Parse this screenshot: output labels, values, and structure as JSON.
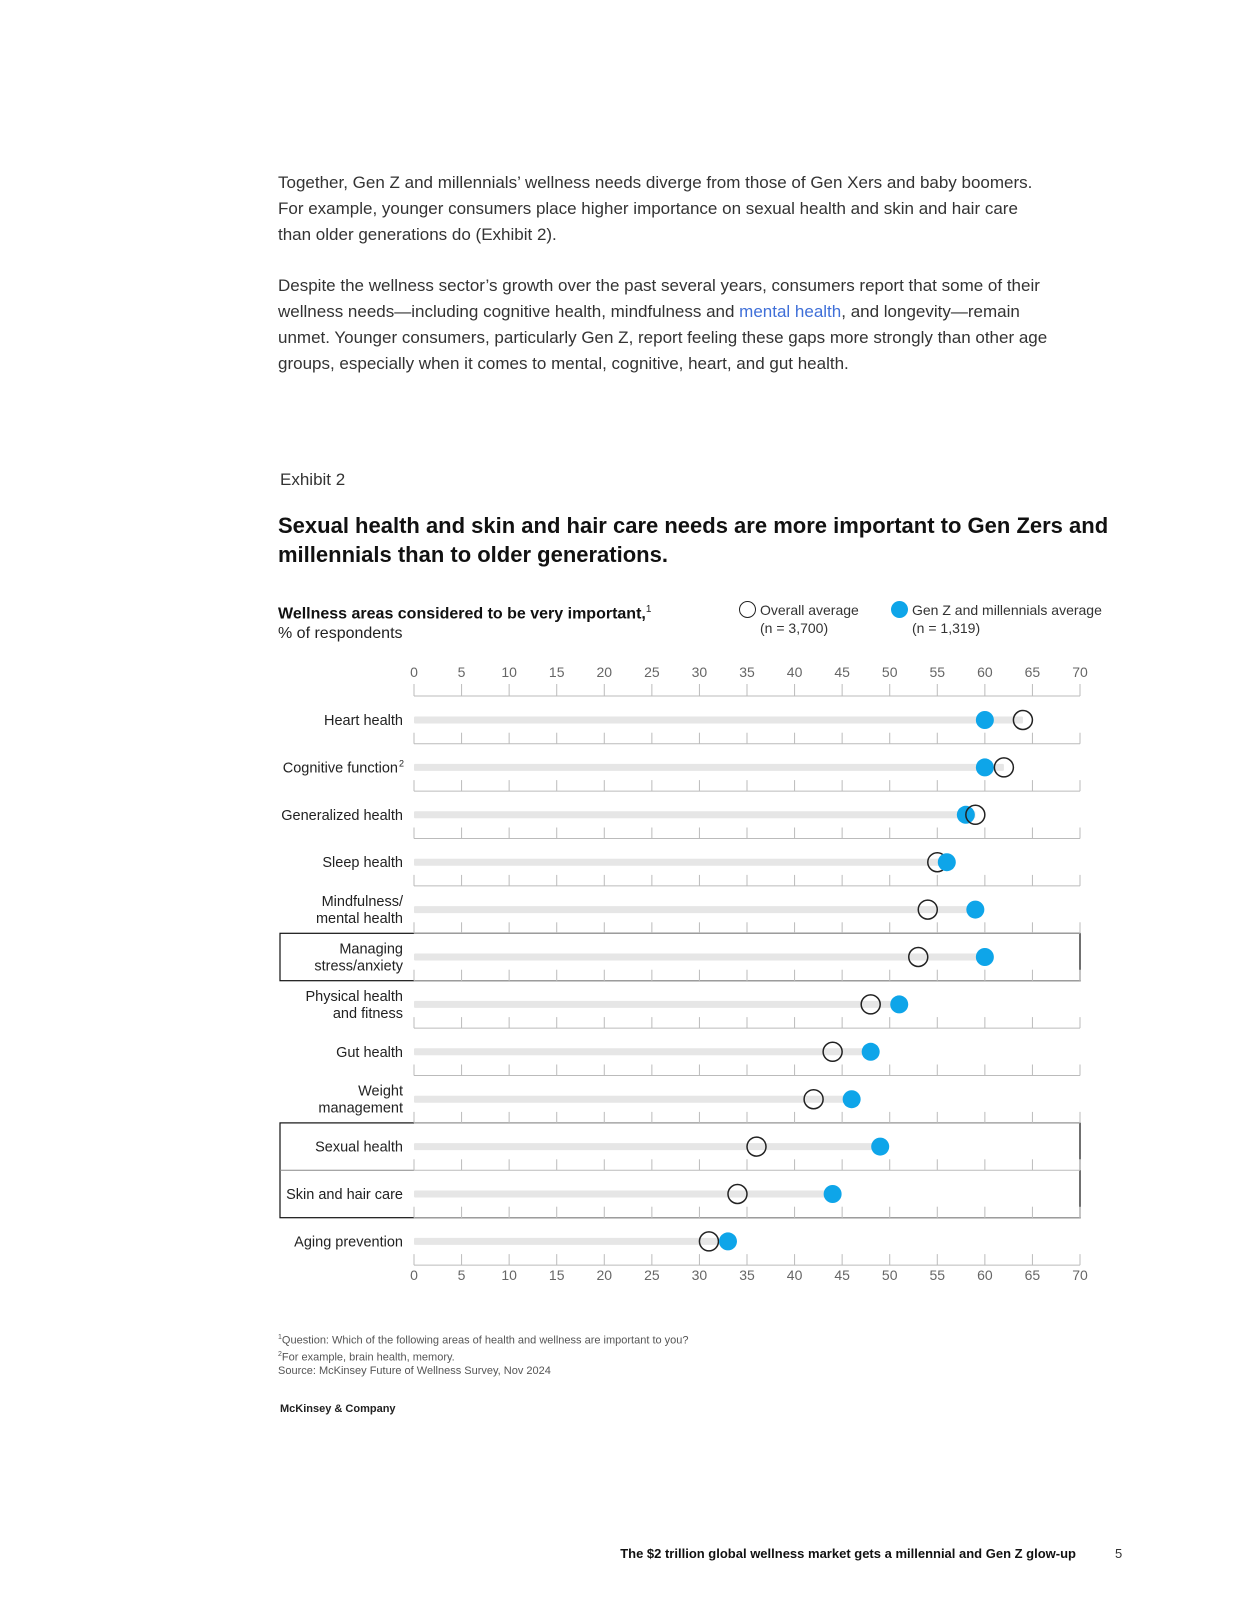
{
  "body_text": {
    "p1": "Together, Gen Z and millennials’ wellness needs diverge from those of Gen Xers and baby boomers. For example, younger consumers place higher importance on sexual health and skin and hair care than older generations do (Exhibit 2).",
    "p2_before": "Despite the wellness sector’s growth over the past several years, consumers report that some of their wellness needs—including cognitive health, mindfulness and ",
    "p2_link": "mental health",
    "p2_after": ", and longevity—remain unmet. Younger consumers, particularly Gen Z, report feeling these gaps more strongly than other age groups, especially when it comes to mental, cognitive, heart, and gut health."
  },
  "exhibit": {
    "label": "Exhibit 2",
    "title": "Sexual health and skin and hair care needs are more important to Gen Zers and millennials than to older generations."
  },
  "chart_data": {
    "type": "dot-plot",
    "subtitle_bold": "Wellness areas considered to be very important,",
    "subtitle_bold_sup": "1",
    "subtitle_unit": "% of respondents",
    "xlim": [
      0,
      70
    ],
    "x_ticks": [
      0,
      5,
      10,
      15,
      20,
      25,
      30,
      35,
      40,
      45,
      50,
      55,
      60,
      65,
      70
    ],
    "colors": {
      "genz": "#0ea5e9",
      "overall_stroke": "#222222",
      "track": "#e6e6e6",
      "axis": "#bbbbbb"
    },
    "series": [
      {
        "name": "Overall average",
        "n_label": "(n = 3,700)",
        "key": "overall"
      },
      {
        "name": "Gen Z and millennials average",
        "n_label": "(n = 1,319)",
        "key": "genz"
      }
    ],
    "categories": [
      {
        "label": [
          "Heart health"
        ],
        "sup": "",
        "overall": 64,
        "genz": 60,
        "highlight": false
      },
      {
        "label": [
          "Cognitive function"
        ],
        "sup": "2",
        "overall": 62,
        "genz": 60,
        "highlight": false
      },
      {
        "label": [
          "Generalized health"
        ],
        "sup": "",
        "overall": 59,
        "genz": 58,
        "highlight": false
      },
      {
        "label": [
          "Sleep health"
        ],
        "sup": "",
        "overall": 55,
        "genz": 56,
        "highlight": false
      },
      {
        "label": [
          "Mindfulness/",
          "mental health"
        ],
        "sup": "",
        "overall": 54,
        "genz": 59,
        "highlight": false
      },
      {
        "label": [
          "Managing",
          "stress/anxiety"
        ],
        "sup": "",
        "overall": 53,
        "genz": 60,
        "highlight": true
      },
      {
        "label": [
          "Physical health",
          "and fitness"
        ],
        "sup": "",
        "overall": 48,
        "genz": 51,
        "highlight": false
      },
      {
        "label": [
          "Gut health"
        ],
        "sup": "",
        "overall": 44,
        "genz": 48,
        "highlight": false
      },
      {
        "label": [
          "Weight",
          "management"
        ],
        "sup": "",
        "overall": 42,
        "genz": 46,
        "highlight": false
      },
      {
        "label": [
          "Sexual health"
        ],
        "sup": "",
        "overall": 36,
        "genz": 49,
        "highlight": true
      },
      {
        "label": [
          "Skin and hair care"
        ],
        "sup": "",
        "overall": 34,
        "genz": 44,
        "highlight": true
      },
      {
        "label": [
          "Aging prevention"
        ],
        "sup": "",
        "overall": 31,
        "genz": 33,
        "highlight": false
      }
    ]
  },
  "footnotes": {
    "f1_sup": "1",
    "f1": "Question: Which of the following areas of health and wellness are important to you?",
    "f2_sup": "2",
    "f2": "For example, brain health, memory.",
    "source": " Source: McKinsey Future of Wellness Survey, Nov 2024"
  },
  "brand": "McKinsey & Company",
  "footer": {
    "title": "The $2 trillion global wellness market gets a millennial and Gen Z glow-up",
    "page": "5"
  }
}
